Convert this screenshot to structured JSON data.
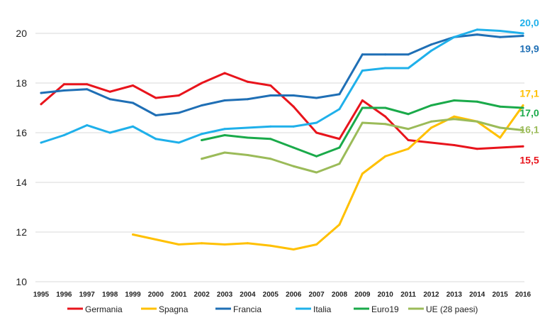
{
  "chart_data": {
    "type": "line",
    "title": "",
    "xlabel": "",
    "ylabel": "",
    "ylim": [
      10,
      20
    ],
    "yticks": [
      10,
      12,
      14,
      16,
      18,
      20
    ],
    "ytick_labels": [
      "10",
      "12",
      "14",
      "16",
      "18",
      "20"
    ],
    "grid": true,
    "legend": "bottom",
    "categories": [
      "1995",
      "1996",
      "1997",
      "1998",
      "1999",
      "2000",
      "2001",
      "2002",
      "2003",
      "2004",
      "2005",
      "2006",
      "2007",
      "2008",
      "2009",
      "2010",
      "2011",
      "2012",
      "2013",
      "2014",
      "2015",
      "2016"
    ],
    "series": [
      {
        "name": "Germania",
        "color": "#e8141c",
        "values": [
          17.15,
          17.95,
          17.95,
          17.65,
          17.9,
          17.4,
          17.5,
          18.0,
          18.4,
          18.05,
          17.9,
          17.05,
          16.0,
          15.75,
          17.3,
          16.65,
          15.7,
          15.6,
          15.5,
          15.35,
          15.4,
          15.45
        ],
        "end_label": "15,5"
      },
      {
        "name": "Spagna",
        "color": "#ffc000",
        "values": [
          null,
          null,
          null,
          null,
          11.9,
          11.7,
          11.5,
          11.55,
          11.5,
          11.55,
          11.45,
          11.3,
          11.5,
          12.3,
          14.35,
          15.05,
          15.35,
          16.2,
          16.65,
          16.45,
          15.8,
          17.1
        ],
        "end_label": "17,1"
      },
      {
        "name": "Francia",
        "color": "#1f6fb5",
        "values": [
          17.6,
          17.7,
          17.75,
          17.35,
          17.2,
          16.7,
          16.8,
          17.1,
          17.3,
          17.35,
          17.5,
          17.5,
          17.4,
          17.55,
          19.15,
          19.15,
          19.15,
          19.55,
          19.85,
          19.95,
          19.85,
          19.9
        ],
        "end_label": "19,9"
      },
      {
        "name": "Italia",
        "color": "#1fb0ea",
        "values": [
          15.6,
          15.9,
          16.3,
          16.0,
          16.25,
          15.75,
          15.6,
          15.95,
          16.15,
          16.2,
          16.25,
          16.25,
          16.4,
          16.95,
          18.5,
          18.6,
          18.6,
          19.3,
          19.85,
          20.15,
          20.1,
          20.0
        ],
        "end_label": "20,0"
      },
      {
        "name": "Euro19",
        "color": "#1aaa4a",
        "values": [
          null,
          null,
          null,
          null,
          null,
          null,
          null,
          15.7,
          15.9,
          15.8,
          15.75,
          15.4,
          15.05,
          15.4,
          17.0,
          17.0,
          16.75,
          17.1,
          17.3,
          17.25,
          17.05,
          17.0
        ],
        "end_label": "17,0"
      },
      {
        "name": "UE (28 paesi)",
        "color": "#9bbb59",
        "values": [
          null,
          null,
          null,
          null,
          null,
          null,
          null,
          14.95,
          15.2,
          15.1,
          14.95,
          14.65,
          14.4,
          14.75,
          16.4,
          16.35,
          16.15,
          16.45,
          16.55,
          16.45,
          16.2,
          16.1
        ],
        "end_label": "16,1"
      }
    ]
  }
}
